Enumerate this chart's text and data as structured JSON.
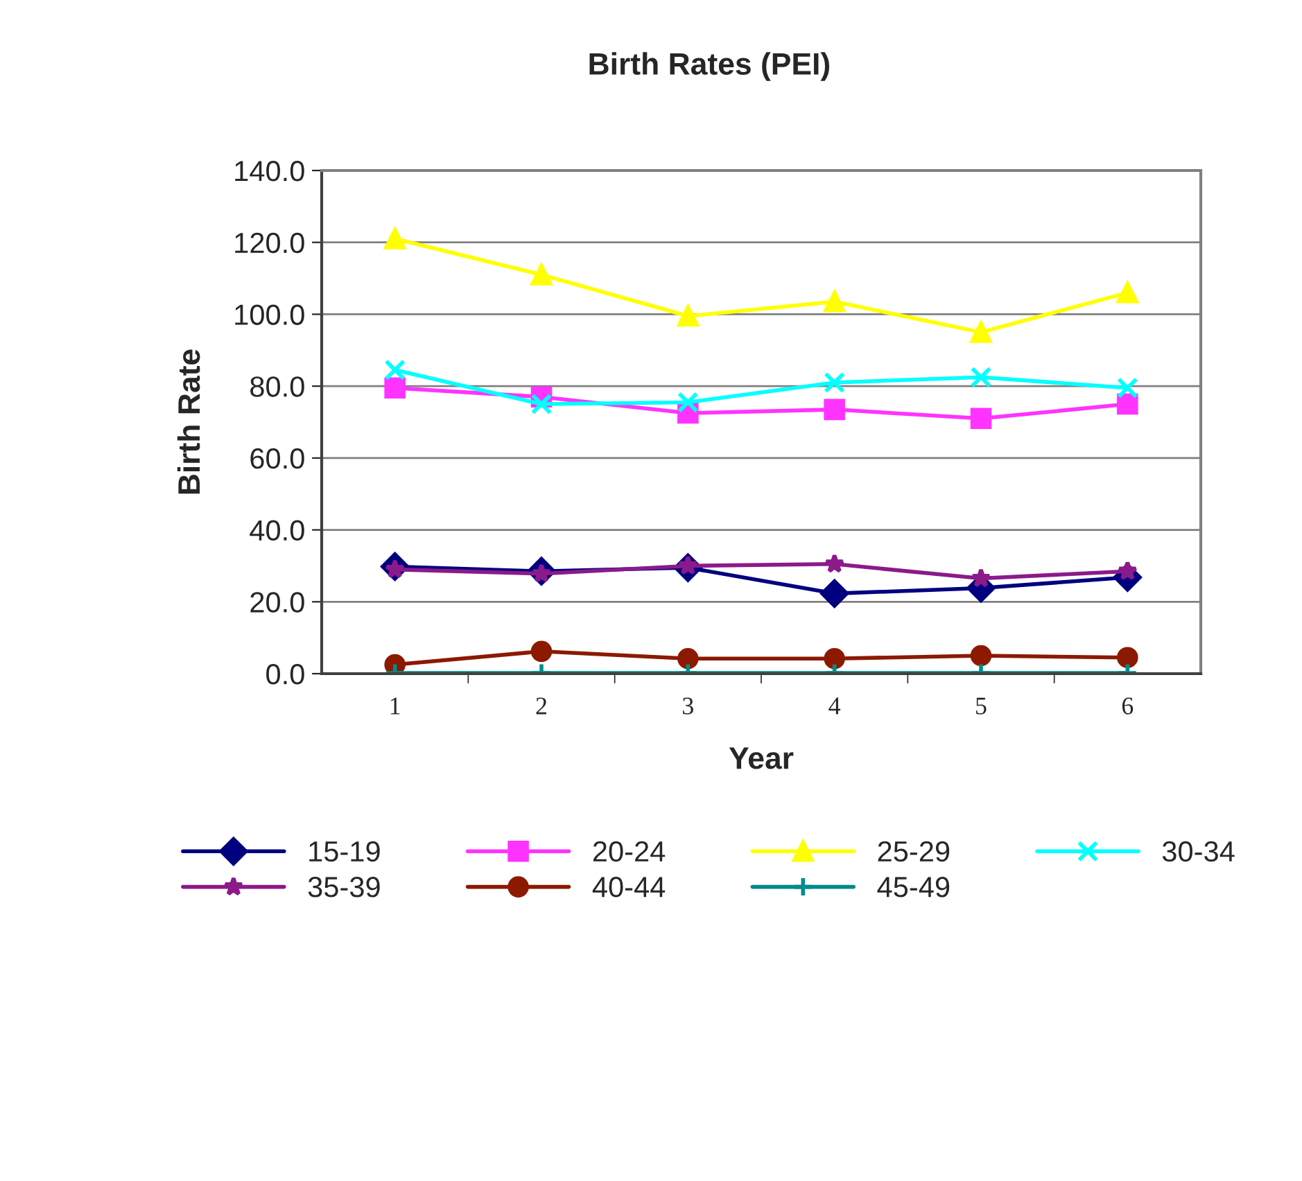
{
  "chart_data": {
    "type": "line",
    "title": "Birth Rates (PEI)",
    "xlabel": "Year",
    "ylabel": "Birth Rate",
    "categories": [
      "1",
      "2",
      "3",
      "4",
      "5",
      "6"
    ],
    "series": [
      {
        "name": "15-19",
        "color": "#000080",
        "marker": "diamond",
        "values": [
          29.8,
          28.5,
          29.5,
          22.3,
          23.8,
          26.8
        ]
      },
      {
        "name": "20-24",
        "color": "#ff33ff",
        "marker": "square",
        "values": [
          79.5,
          77.0,
          72.5,
          73.5,
          71.0,
          75.0
        ]
      },
      {
        "name": "25-29",
        "color": "#ffff00",
        "marker": "triangle",
        "values": [
          121.0,
          111.0,
          99.5,
          103.5,
          95.0,
          106.0
        ]
      },
      {
        "name": "30-34",
        "color": "#00ffff",
        "marker": "cross",
        "values": [
          84.5,
          75.0,
          75.5,
          81.0,
          82.5,
          79.5
        ]
      },
      {
        "name": "35-39",
        "color": "#8b1a8b",
        "marker": "star",
        "values": [
          29.0,
          27.8,
          30.0,
          30.5,
          26.5,
          28.5
        ]
      },
      {
        "name": "40-44",
        "color": "#8b1a00",
        "marker": "circle",
        "values": [
          2.5,
          6.2,
          4.2,
          4.2,
          5.0,
          4.5
        ]
      },
      {
        "name": "45-49",
        "color": "#008b8b",
        "marker": "cross",
        "values": [
          0.2,
          0.2,
          0.2,
          0.2,
          0.2,
          0.2
        ]
      }
    ],
    "ylim": [
      0,
      140
    ],
    "yticks": [
      {
        "value": 0,
        "label": "0.0"
      },
      {
        "value": 20,
        "label": "20.0"
      },
      {
        "value": 40,
        "label": "40.0"
      },
      {
        "value": 60,
        "label": "60.0"
      },
      {
        "value": 80,
        "label": "80.0"
      },
      {
        "value": 100,
        "label": "100.0"
      },
      {
        "value": 120,
        "label": "120.0"
      },
      {
        "value": 140,
        "label": "140.0"
      }
    ],
    "grid": "y",
    "legend": "bottom",
    "line_style": "solid"
  }
}
